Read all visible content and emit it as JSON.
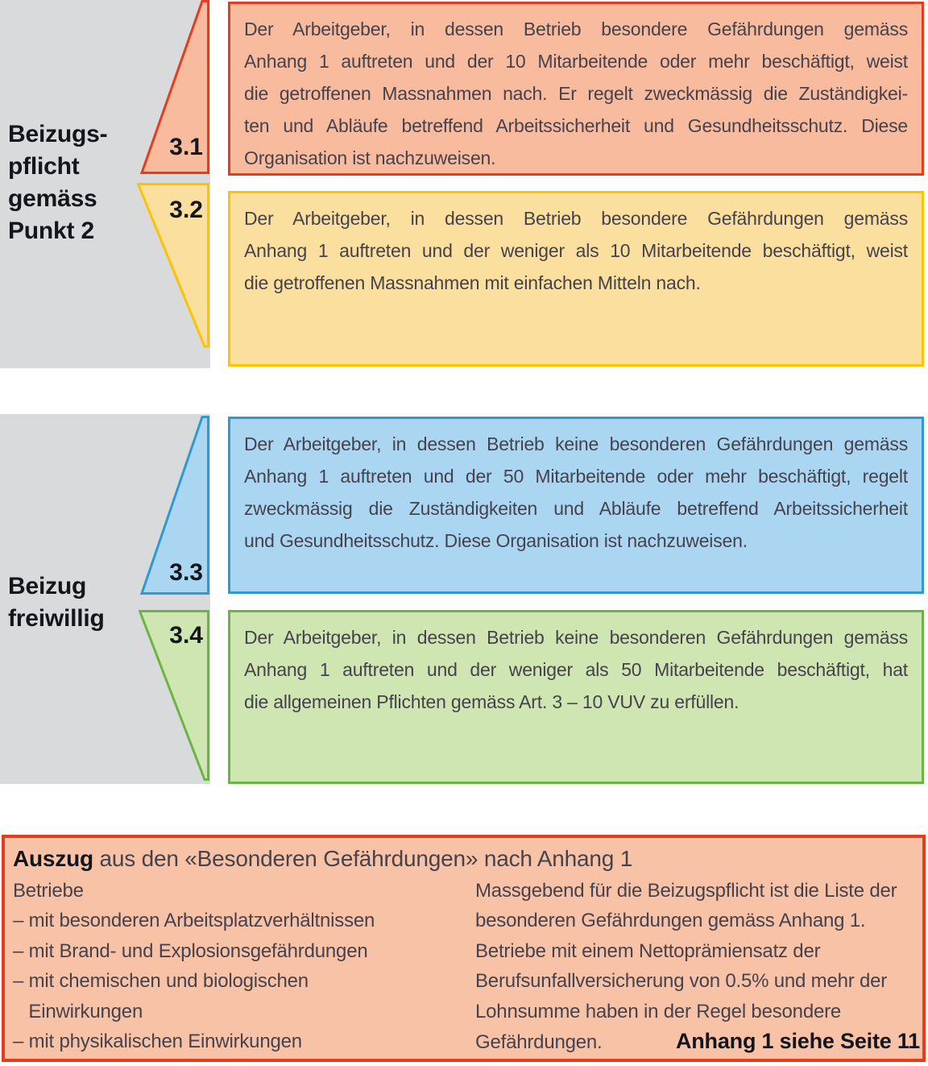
{
  "colors": {
    "panel_gray": "#d9dadb",
    "section_31": {
      "border": "#e63c1e",
      "fill": "#f8bb9d"
    },
    "section_32": {
      "border": "#fcc303",
      "fill": "#fbdf9f"
    },
    "section_33": {
      "border": "#2d9ad6",
      "fill": "#abd6f1"
    },
    "section_34": {
      "border": "#6ab544",
      "fill": "#cfe6b2"
    },
    "footer_box": {
      "border": "#e63c1e",
      "fill": "#f8c2a6"
    },
    "heading_text": "#15151e",
    "body_text": "#46424d"
  },
  "left_labels": [
    {
      "id": "beizugspflicht",
      "lines": [
        "Beizugs-",
        "pflicht",
        "gemäss",
        "Punkt 2"
      ]
    },
    {
      "id": "beizug-freiwillig",
      "lines": [
        "Beizug",
        "freiwillig"
      ]
    }
  ],
  "sections": [
    {
      "number": "3.1",
      "lines": [
        "Der Arbeitgeber, in dessen Betrieb besondere Gefährdungen gemäss",
        "Anhang 1 auftreten und der 10 Mitarbeitende oder mehr beschäftigt, weist",
        "die getroffenen Massnahmen nach. Er regelt zweckmässig die Zuständigkei-",
        "ten und Abläufe betreffend Arbeitssicherheit und Gesundheitsschutz. Diese",
        "Organisation ist nachzuweisen."
      ]
    },
    {
      "number": "3.2",
      "lines": [
        "Der Arbeitgeber, in dessen Betrieb besondere Gefährdungen gemäss",
        "Anhang 1 auftreten und der weniger als 10 Mitarbeitende beschäftigt, weist",
        "die getroffenen Massnahmen mit einfachen Mitteln nach."
      ]
    },
    {
      "number": "3.3",
      "lines": [
        "Der Arbeitgeber, in dessen Betrieb keine besonderen Gefährdungen gemäss",
        "Anhang 1 auftreten und der 50 Mitarbeitende oder mehr beschäftigt, regelt",
        "zweckmässig die Zuständigkeiten und Abläufe betreffend Arbeitssicherheit",
        "und Gesundheitsschutz. Diese Organisation ist nachzuweisen."
      ]
    },
    {
      "number": "3.4",
      "lines": [
        "Der Arbeitgeber, in dessen Betrieb keine besonderen Gefährdungen gemäss",
        "Anhang 1 auftreten und der weniger als 50 Mitarbeitende beschäftigt, hat",
        "die allgemeinen Pflichten gemäss Art. 3 – 10 VUV zu erfüllen."
      ]
    }
  ],
  "footer": {
    "title_bold": "Auszug",
    "title_rest": " aus den «Besonderen Gefährdungen» nach Anhang 1",
    "left_lines": [
      "Betriebe",
      "– mit besonderen Arbeitsplatzverhältnissen",
      "– mit Brand- und Explosionsgefährdungen",
      "– mit chemischen und biologischen",
      "   Einwirkungen",
      "– mit physikalischen Einwirkungen"
    ],
    "right_lines": [
      "Massgebend für die Beizugspflicht ist die Liste der",
      "besonderen Gefährdungen gemäss Anhang 1.",
      "Betriebe mit einem Nettoprämiensatz der",
      "Berufsunfallversicherung von 0.5% und mehr der",
      "Lohnsumme haben in der Regel besondere"
    ],
    "right_last": "Gefährdungen.",
    "anhang_ref": "Anhang 1 siehe Seite 11"
  }
}
